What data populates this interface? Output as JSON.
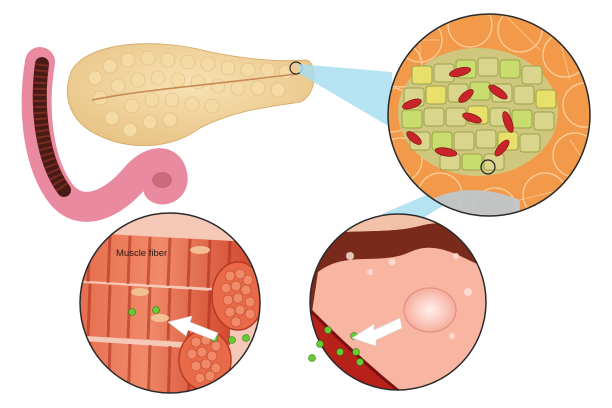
{
  "diagram": {
    "subject": "pancreas-to-muscle-insulin-illustration",
    "labels": {
      "muscle_fiber": "Muscle fiber"
    }
  },
  "palette": {
    "pancreas": "#f0d29a",
    "duodenum": "#e98aa0",
    "duodenum_inner": "#4a1a16",
    "islet_cell": "#c8dd6e",
    "acinar": "#f39a4a",
    "blood_cell": "#c8242a",
    "lens_beam": "#a8def0",
    "muscle": "#e0573a",
    "vessel_wall": "#7a2a1a",
    "glucose_dot": "#66cc33",
    "arrow": "#ffffff"
  }
}
